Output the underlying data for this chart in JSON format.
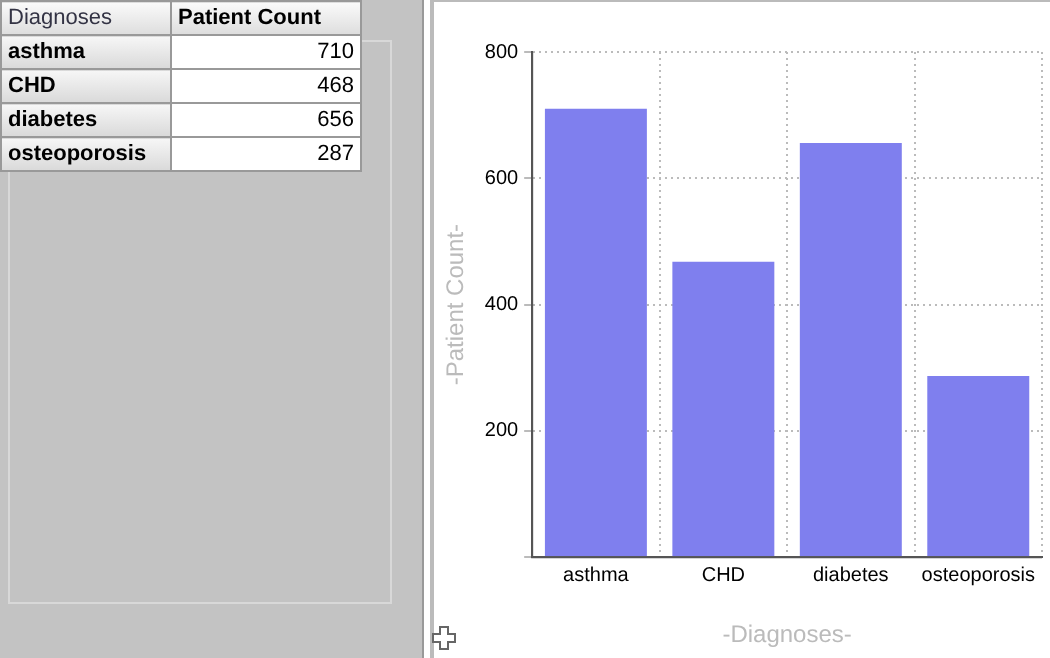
{
  "chart_data": [
    {
      "type": "other",
      "annotations": [
        "Diagnoses",
        "Patient Count",
        "asthma",
        "710",
        "CHD",
        "468",
        "diabetes",
        "656",
        "osteoporosis",
        "287"
      ]
    },
    {
      "type": "bar",
      "xlabel": "-Diagnoses-",
      "ylabel": "-Patient Count-",
      "categories": [
        "asthma",
        "CHD",
        "diabetes",
        "osteoporosis"
      ],
      "values": [
        710,
        468,
        656,
        287
      ],
      "color": "#7f7fee",
      "ylim": [
        0,
        800
      ],
      "yticks": [
        {
          "value": 0,
          "label": null
        },
        200,
        400,
        600,
        800
      ],
      "grid": true,
      "line_style": "dotted"
    }
  ]
}
